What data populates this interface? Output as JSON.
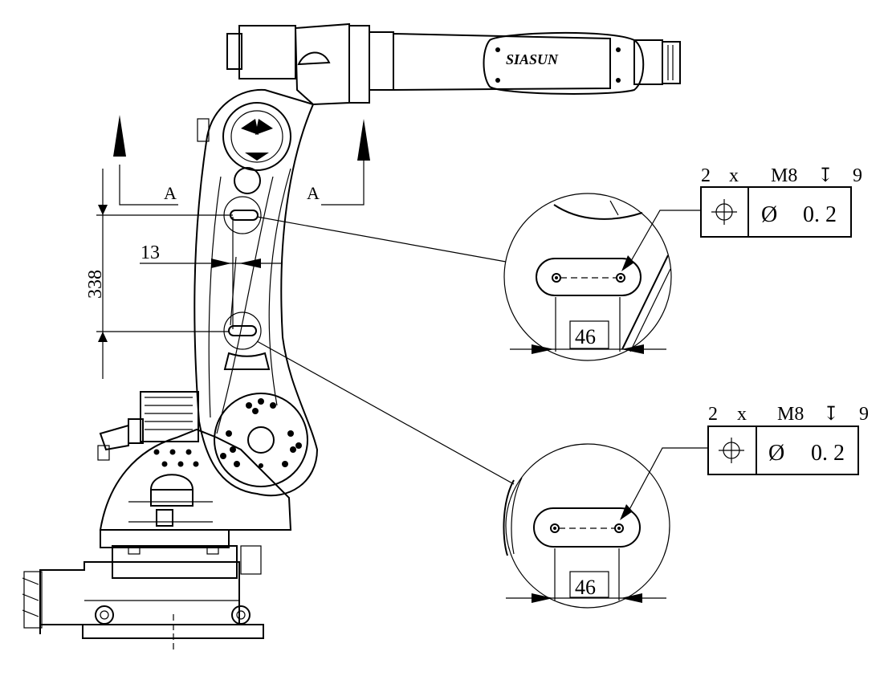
{
  "section": {
    "label_left": "A",
    "label_right": "A"
  },
  "dimensions": {
    "height": "338",
    "width": "13"
  },
  "robot": {
    "brand_text": "SIASUN"
  },
  "detail_upper": {
    "spec_count": "2",
    "spec_times": "x",
    "spec_thread": "M8",
    "spec_depth_symbol": "↧",
    "spec_depth": "9",
    "tol_position_symbol": "⌖",
    "tol_diameter_symbol": "Ø",
    "tol_value": "0. 2",
    "spacing": "46"
  },
  "detail_lower": {
    "spec_count": "2",
    "spec_times": "x",
    "spec_thread": "M8",
    "spec_depth_symbol": "↧",
    "spec_depth": "9",
    "tol_position_symbol": "⌖",
    "tol_diameter_symbol": "Ø",
    "tol_value": "0. 2",
    "spacing": "46"
  }
}
